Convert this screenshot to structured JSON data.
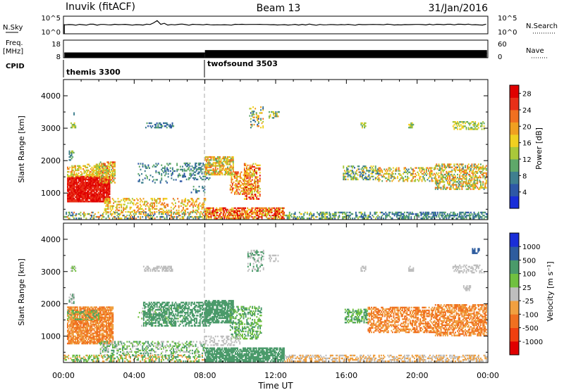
{
  "header": {
    "station": "Inuvik (fitACF)",
    "beam": "Beam 13",
    "date": "31/Jan/2016"
  },
  "noise_panel": {
    "left_label": "N.Sky",
    "right_label": "N.Search",
    "left_ticks": [
      "10^5",
      "10^0"
    ],
    "right_ticks": [
      "10^5",
      "10^0"
    ],
    "right_legend_line": "dotted"
  },
  "freq_panel": {
    "left_label_1": "Freq.",
    "left_label_2": "[MHz]",
    "right_label": "Nave",
    "left_ticks": [
      "18",
      "8"
    ],
    "right_ticks": [
      "60",
      "0"
    ],
    "right_legend_line": "dotted",
    "freq_mhz": 10.5,
    "nave_low": 18,
    "nave_high": 26
  },
  "cpid_panel": {
    "label": "CPID",
    "segments": [
      {
        "name": "themis 3300",
        "start_h": 0
      },
      {
        "name": "twofsound 3503",
        "start_h": 8
      }
    ]
  },
  "chart_data": [
    {
      "type": "heatmap",
      "panel": "power",
      "ylabel": "Slant Range [km]",
      "yticks": [
        1000,
        2000,
        3000,
        4000
      ],
      "ylim": [
        180,
        4500
      ],
      "xlim_hours": [
        0,
        24
      ],
      "colorbar_label": "Power [dB]",
      "colorbar_ticks": [
        4,
        8,
        12,
        16,
        20,
        24,
        28
      ],
      "colorbar_range": [
        0,
        30
      ],
      "palette": [
        "#1a2ed8",
        "#2e58a6",
        "#3f7f8f",
        "#5fa86a",
        "#a9c83a",
        "#f0d020",
        "#f0a020",
        "#f07020",
        "#e83018",
        "#e00000"
      ],
      "cell_width_h": 0.0625,
      "cell_height_km": 45,
      "regions": [
        {
          "h0": 0.2,
          "h1": 2.6,
          "r0": 720,
          "r1": 1500,
          "v0": 24,
          "v1": 30,
          "d": 0.9
        },
        {
          "h0": 0.2,
          "h1": 2.6,
          "r0": 1500,
          "r1": 1850,
          "v0": 12,
          "v1": 22,
          "d": 0.5
        },
        {
          "h0": 2.0,
          "h1": 2.9,
          "r0": 1300,
          "r1": 1950,
          "v0": 10,
          "v1": 26,
          "d": 0.55
        },
        {
          "h0": 1.2,
          "h1": 2.0,
          "r0": 1500,
          "r1": 1900,
          "v0": 12,
          "v1": 20,
          "d": 0.45
        },
        {
          "h0": 0.3,
          "h1": 0.6,
          "r0": 2000,
          "r1": 2300,
          "v0": 6,
          "v1": 14,
          "d": 0.6
        },
        {
          "h0": 0.4,
          "h1": 0.7,
          "r0": 3000,
          "r1": 3150,
          "v0": 10,
          "v1": 16,
          "d": 0.6
        },
        {
          "h0": 0.5,
          "h1": 0.6,
          "r0": 3400,
          "r1": 3520,
          "v0": 4,
          "v1": 10,
          "d": 0.5
        },
        {
          "h0": 4.5,
          "h1": 6.2,
          "r0": 3000,
          "r1": 3180,
          "v0": 3,
          "v1": 10,
          "d": 0.5
        },
        {
          "h0": 4.2,
          "h1": 6.8,
          "r0": 1300,
          "r1": 1900,
          "v0": 4,
          "v1": 12,
          "d": 0.18
        },
        {
          "h0": 6.8,
          "h1": 8.3,
          "r0": 1400,
          "r1": 1900,
          "v0": 4,
          "v1": 12,
          "d": 0.35
        },
        {
          "h0": 8.0,
          "h1": 9.6,
          "r0": 1550,
          "r1": 2100,
          "v0": 10,
          "v1": 24,
          "d": 0.7
        },
        {
          "h0": 7.2,
          "h1": 8.0,
          "r0": 1000,
          "r1": 1200,
          "v0": 4,
          "v1": 12,
          "d": 0.3
        },
        {
          "h0": 9.4,
          "h1": 10.6,
          "r0": 950,
          "r1": 1650,
          "v0": 14,
          "v1": 26,
          "d": 0.45
        },
        {
          "h0": 10.2,
          "h1": 11.1,
          "r0": 800,
          "r1": 1900,
          "v0": 14,
          "v1": 28,
          "d": 0.5
        },
        {
          "h0": 10.5,
          "h1": 11.3,
          "r0": 3000,
          "r1": 3650,
          "v0": 4,
          "v1": 22,
          "d": 0.3
        },
        {
          "h0": 11.6,
          "h1": 12.2,
          "r0": 3300,
          "r1": 3500,
          "v0": 4,
          "v1": 20,
          "d": 0.4
        },
        {
          "h0": 2.3,
          "h1": 8.0,
          "r0": 400,
          "r1": 820,
          "v0": 12,
          "v1": 24,
          "d": 0.35
        },
        {
          "h0": 0.0,
          "h1": 8.0,
          "r0": 200,
          "r1": 420,
          "v0": 4,
          "v1": 24,
          "d": 0.4
        },
        {
          "h0": 8.0,
          "h1": 12.5,
          "r0": 200,
          "r1": 560,
          "v0": 14,
          "v1": 30,
          "d": 0.7
        },
        {
          "h0": 12.5,
          "h1": 18.0,
          "r0": 200,
          "r1": 400,
          "v0": 4,
          "v1": 16,
          "d": 0.45
        },
        {
          "h0": 18.0,
          "h1": 24.0,
          "r0": 200,
          "r1": 400,
          "v0": 4,
          "v1": 12,
          "d": 0.55
        },
        {
          "h0": 15.8,
          "h1": 17.8,
          "r0": 1400,
          "r1": 1850,
          "v0": 4,
          "v1": 20,
          "d": 0.45
        },
        {
          "h0": 17.8,
          "h1": 21.0,
          "r0": 1350,
          "r1": 1800,
          "v0": 8,
          "v1": 24,
          "d": 0.4
        },
        {
          "h0": 21.0,
          "h1": 23.9,
          "r0": 1100,
          "r1": 1900,
          "v0": 8,
          "v1": 24,
          "d": 0.55
        },
        {
          "h0": 16.8,
          "h1": 17.1,
          "r0": 3000,
          "r1": 3150,
          "v0": 10,
          "v1": 16,
          "d": 0.6
        },
        {
          "h0": 19.5,
          "h1": 19.8,
          "r0": 3000,
          "r1": 3150,
          "v0": 10,
          "v1": 16,
          "d": 0.6
        },
        {
          "h0": 22.0,
          "h1": 23.8,
          "r0": 2950,
          "r1": 3200,
          "v0": 10,
          "v1": 18,
          "d": 0.45
        }
      ]
    },
    {
      "type": "heatmap",
      "panel": "velocity",
      "ylabel": "Slant Range [km]",
      "yticks": [
        1000,
        2000,
        3000,
        4000
      ],
      "ylim": [
        180,
        4500
      ],
      "xlim_hours": [
        0,
        24
      ],
      "colorbar_label": "Velocity [m s⁻¹]",
      "colorbar_ticks": [
        "1000",
        "500",
        "100",
        "25",
        "-25",
        "-100",
        "-500",
        "-1000"
      ],
      "palette": [
        "#e00000",
        "#f04010",
        "#f07020",
        "#f0a040",
        "#bebebe",
        "#70c040",
        "#4a9a6a",
        "#2e5c9e",
        "#1a2ed8"
      ],
      "cell_width_h": 0.0625,
      "cell_height_km": 45,
      "regions": [
        {
          "h0": 0.2,
          "h1": 2.8,
          "r0": 750,
          "r1": 1900,
          "c": [
            2,
            3
          ],
          "d": 0.8
        },
        {
          "h0": 0.2,
          "h1": 2.0,
          "r0": 1500,
          "r1": 1800,
          "c": [
            6,
            5,
            3
          ],
          "d": 0.4
        },
        {
          "h0": 0.3,
          "h1": 0.6,
          "r0": 2000,
          "r1": 2300,
          "c": [
            4,
            6
          ],
          "d": 0.6
        },
        {
          "h0": 0.4,
          "h1": 0.7,
          "r0": 3000,
          "r1": 3150,
          "c": [
            4,
            5
          ],
          "d": 0.6
        },
        {
          "h0": 4.2,
          "h1": 6.8,
          "r0": 1300,
          "r1": 1900,
          "c": [
            4,
            5
          ],
          "d": 0.15
        },
        {
          "h0": 4.5,
          "h1": 6.2,
          "r0": 3000,
          "r1": 3180,
          "c": [
            4
          ],
          "d": 0.45
        },
        {
          "h0": 4.5,
          "h1": 8.3,
          "r0": 1300,
          "r1": 2050,
          "c": [
            6
          ],
          "d": 0.55
        },
        {
          "h0": 8.0,
          "h1": 9.6,
          "r0": 1400,
          "r1": 2100,
          "c": [
            6
          ],
          "d": 0.75
        },
        {
          "h0": 9.4,
          "h1": 11.2,
          "r0": 900,
          "r1": 1900,
          "c": [
            6,
            5
          ],
          "d": 0.45
        },
        {
          "h0": 10.4,
          "h1": 11.3,
          "r0": 3000,
          "r1": 3650,
          "c": [
            4,
            6
          ],
          "d": 0.3
        },
        {
          "h0": 11.6,
          "h1": 12.2,
          "r0": 3300,
          "r1": 3500,
          "c": [
            4
          ],
          "d": 0.4
        },
        {
          "h0": 8.0,
          "h1": 10.0,
          "r0": 700,
          "r1": 1000,
          "c": [
            4
          ],
          "d": 0.35
        },
        {
          "h0": 2.0,
          "h1": 8.0,
          "r0": 400,
          "r1": 820,
          "c": [
            4,
            6,
            5
          ],
          "d": 0.35
        },
        {
          "h0": 0.0,
          "h1": 8.0,
          "r0": 200,
          "r1": 420,
          "c": [
            3,
            5,
            6
          ],
          "d": 0.45
        },
        {
          "h0": 8.0,
          "h1": 12.5,
          "r0": 200,
          "r1": 620,
          "c": [
            6
          ],
          "d": 0.8
        },
        {
          "h0": 12.5,
          "h1": 18.0,
          "r0": 200,
          "r1": 400,
          "c": [
            3,
            4
          ],
          "d": 0.5
        },
        {
          "h0": 18.0,
          "h1": 24.0,
          "r0": 200,
          "r1": 400,
          "c": [
            3,
            4
          ],
          "d": 0.5
        },
        {
          "h0": 15.9,
          "h1": 17.2,
          "r0": 1400,
          "r1": 1850,
          "c": [
            5,
            6
          ],
          "d": 0.5
        },
        {
          "h0": 17.2,
          "h1": 21.0,
          "r0": 1100,
          "r1": 1900,
          "c": [
            2,
            3
          ],
          "d": 0.55
        },
        {
          "h0": 21.0,
          "h1": 23.9,
          "r0": 1000,
          "r1": 1950,
          "c": [
            2,
            3
          ],
          "d": 0.65
        },
        {
          "h0": 16.8,
          "h1": 17.1,
          "r0": 3000,
          "r1": 3150,
          "c": [
            4
          ],
          "d": 0.6
        },
        {
          "h0": 19.5,
          "h1": 19.8,
          "r0": 3000,
          "r1": 3150,
          "c": [
            4
          ],
          "d": 0.6
        },
        {
          "h0": 22.0,
          "h1": 23.8,
          "r0": 2950,
          "r1": 3200,
          "c": [
            4
          ],
          "d": 0.45
        },
        {
          "h0": 22.6,
          "h1": 23.0,
          "r0": 2400,
          "r1": 2550,
          "c": [
            4
          ],
          "d": 0.6
        },
        {
          "h0": 23.1,
          "h1": 23.5,
          "r0": 3550,
          "r1": 3700,
          "c": [
            7
          ],
          "d": 0.6
        }
      ]
    }
  ],
  "x_axis": {
    "ticks": [
      "00:00",
      "04:00",
      "08:00",
      "12:00",
      "16:00",
      "20:00",
      "00:00"
    ],
    "label": "Time UT"
  }
}
